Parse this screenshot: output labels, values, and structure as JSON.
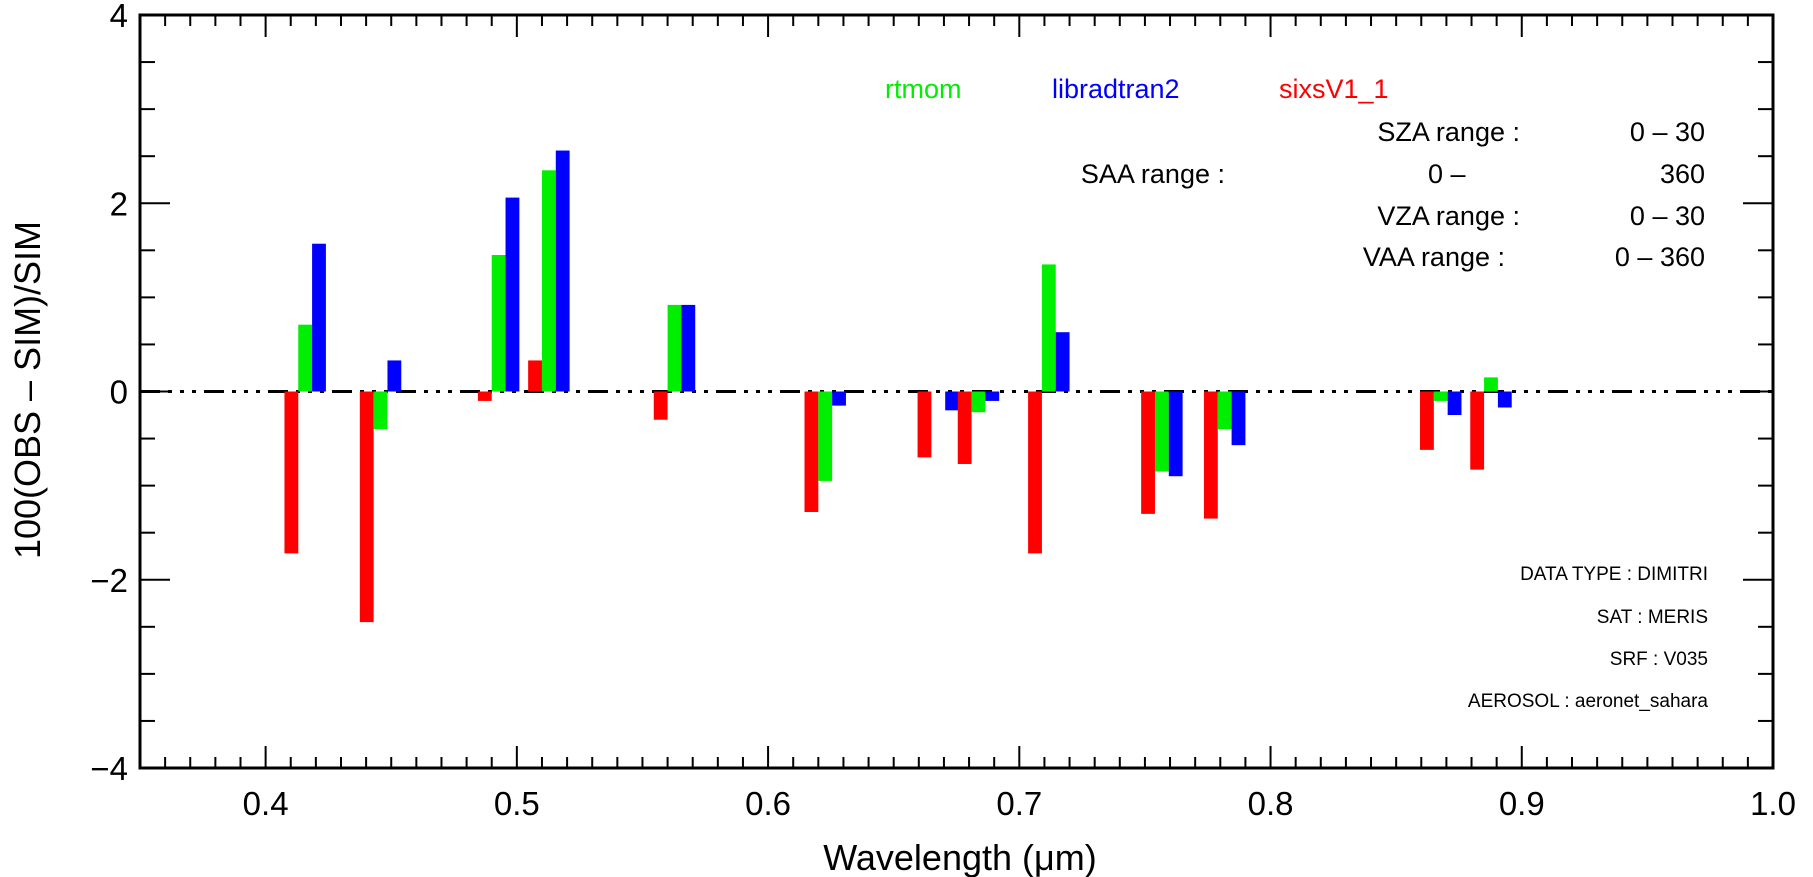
{
  "chart_data": {
    "type": "bar",
    "title": "",
    "xlabel": "Wavelength (μm)",
    "ylabel": "100(OBS – SIM)/SIM",
    "xlim": [
      0.35,
      1.0
    ],
    "ylim": [
      -4,
      4
    ],
    "xticks": [
      "0.4",
      "0.5",
      "0.6",
      "0.7",
      "0.8",
      "0.9",
      "1.0"
    ],
    "yticks": [
      "−4",
      "−2",
      "0",
      "2",
      "4"
    ],
    "categories": [
      0.413,
      0.443,
      0.49,
      0.51,
      0.56,
      0.62,
      0.665,
      0.681,
      0.709,
      0.754,
      0.779,
      0.865,
      0.885
    ],
    "series": [
      {
        "name": "sixsV1_1",
        "color": "#ff0000",
        "values": [
          -1.72,
          -2.45,
          -0.1,
          0.33,
          -0.3,
          -1.28,
          -0.7,
          -0.77,
          -1.72,
          -1.3,
          -1.35,
          -0.62,
          -0.83
        ]
      },
      {
        "name": "rtmom",
        "color": "#00ee00",
        "values": [
          0.71,
          -0.4,
          1.45,
          2.35,
          0.92,
          -0.95,
          0.0,
          -0.22,
          1.35,
          -0.85,
          -0.4,
          -0.1,
          0.15
        ]
      },
      {
        "name": "libradtran2",
        "color": "#0000ff",
        "values": [
          1.57,
          0.33,
          2.06,
          2.56,
          0.92,
          -0.15,
          -0.2,
          -0.1,
          0.63,
          -0.9,
          -0.57,
          -0.25,
          -0.17
        ]
      }
    ],
    "legend_placement": "top-right",
    "grid": false
  },
  "info": {
    "sza_label": "SZA range :",
    "sza_value": "0 –  30",
    "saa_label": "SAA range :",
    "saa_from": "0 –",
    "saa_to": "360",
    "vza_label": "VZA range :",
    "vza_value": "0 –  30",
    "vaa_label": "VAA range :",
    "vaa_value": "0 – 360"
  },
  "meta": {
    "data_type": "DATA TYPE : DIMITRI",
    "sat": "SAT    : MERIS",
    "srf": "SRF     : V035",
    "aerosol": "AEROSOL : aeronet_sahara"
  }
}
